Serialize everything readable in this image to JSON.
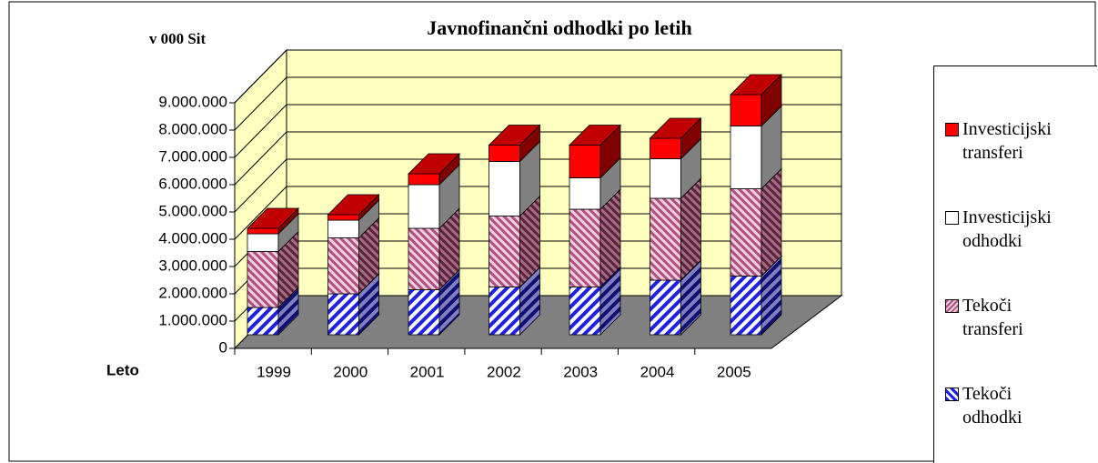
{
  "chart_data": {
    "type": "bar3d_stacked",
    "title": "Javnofinančni odhodki po letih",
    "y_label": "v 000 Sit",
    "x_label": "Leto",
    "categories": [
      "1999",
      "2000",
      "2001",
      "2002",
      "2003",
      "2004",
      "2005"
    ],
    "series": [
      {
        "name": "Tekoči odhodki",
        "color": "#2020e0",
        "values": [
          1000000,
          1500000,
          1650000,
          1750000,
          1750000,
          2000000,
          2150000
        ]
      },
      {
        "name": "Tekoči transferi",
        "color": "#b05080",
        "values": [
          2050000,
          2050000,
          2250000,
          2600000,
          2850000,
          3000000,
          3200000
        ]
      },
      {
        "name": "Investicijski odhodki",
        "color": "#ffffff",
        "values": [
          650000,
          650000,
          1600000,
          2000000,
          1150000,
          1450000,
          2300000
        ]
      },
      {
        "name": "Investicijski transferi",
        "color": "#ff0000",
        "values": [
          200000,
          200000,
          400000,
          600000,
          1200000,
          750000,
          1150000
        ]
      }
    ],
    "ylim": [
      0,
      9000000
    ],
    "yticks": [
      0,
      {
        "value": 1000000,
        "label": "1.000.000"
      },
      {
        "value": 2000000,
        "label": "2.000.000"
      },
      {
        "value": 3000000,
        "label": "3.000.000"
      },
      {
        "value": 4000000,
        "label": "4.000.000"
      },
      {
        "value": 5000000,
        "label": "5.000.000"
      },
      {
        "value": 6000000,
        "label": "6.000.000"
      },
      {
        "value": 7000000,
        "label": "7.000.000"
      },
      {
        "value": 8000000,
        "label": "8.000.000"
      },
      {
        "value": 9000000,
        "label": "9.000.000"
      }
    ],
    "grid": true
  }
}
